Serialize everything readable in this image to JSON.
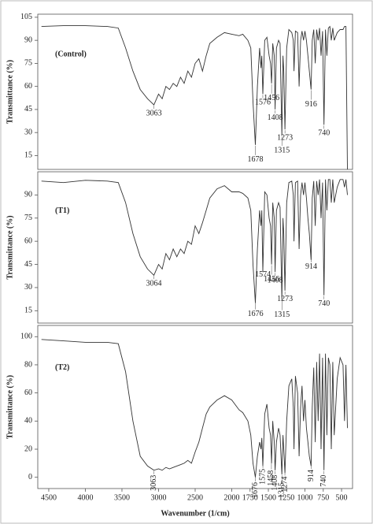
{
  "chart_data": [
    {
      "type": "line",
      "title": "(Control)",
      "ylabel": "Transmittance (%)",
      "xlim": [
        4650,
        350
      ],
      "ylim": [
        6,
        107
      ],
      "yticks": [
        15,
        30,
        45,
        60,
        75,
        90,
        105
      ],
      "x": [
        4600,
        4300,
        4000,
        3700,
        3550,
        3450,
        3350,
        3250,
        3150,
        3063,
        3000,
        2950,
        2900,
        2850,
        2800,
        2750,
        2700,
        2650,
        2600,
        2550,
        2500,
        2450,
        2400,
        2350,
        2300,
        2200,
        2100,
        2000,
        1900,
        1850,
        1780,
        1740,
        1710,
        1678,
        1650,
        1620,
        1600,
        1590,
        1576,
        1550,
        1520,
        1490,
        1470,
        1456,
        1440,
        1420,
        1408,
        1390,
        1360,
        1340,
        1315,
        1300,
        1290,
        1273,
        1250,
        1220,
        1180,
        1160,
        1150,
        1130,
        1100,
        1080,
        1060,
        1040,
        1020,
        1000,
        980,
        960,
        940,
        916,
        900,
        880,
        860,
        840,
        820,
        800,
        780,
        760,
        740,
        720,
        700,
        680,
        660,
        640,
        620,
        600,
        560,
        520,
        480,
        460,
        440,
        420
      ],
      "series": [
        {
          "color": "#333333",
          "values": [
            99,
            99.5,
            99.5,
            99,
            98,
            85,
            70,
            58,
            52,
            48,
            55,
            52,
            60,
            58,
            62,
            60,
            66,
            62,
            70,
            66,
            75,
            78,
            70,
            80,
            88,
            92,
            95,
            94,
            93,
            94,
            90,
            85,
            50,
            22,
            60,
            85,
            72,
            80,
            55,
            90,
            92,
            80,
            75,
            62,
            88,
            80,
            45,
            85,
            90,
            88,
            28,
            80,
            70,
            32,
            85,
            97,
            95,
            90,
            70,
            96,
            95,
            60,
            90,
            96,
            90,
            96,
            90,
            80,
            70,
            58,
            90,
            97,
            75,
            97,
            90,
            98,
            80,
            96,
            35,
            97,
            80,
            98,
            99,
            90,
            98,
            90,
            95,
            97,
            97,
            99,
            99,
            6
          ]
        }
      ],
      "peaks": [
        3063,
        1678,
        1576,
        1456,
        1408,
        1315,
        1273,
        916,
        740
      ]
    },
    {
      "type": "line",
      "title": "(T1)",
      "ylabel": "Transmittance (%)",
      "xlim": [
        4650,
        350
      ],
      "ylim": [
        7,
        105
      ],
      "yticks": [
        15,
        30,
        45,
        60,
        75,
        90
      ],
      "x": [
        4600,
        4300,
        4000,
        3700,
        3550,
        3450,
        3350,
        3250,
        3150,
        3063,
        3000,
        2950,
        2900,
        2850,
        2800,
        2750,
        2700,
        2650,
        2600,
        2550,
        2500,
        2450,
        2400,
        2350,
        2300,
        2200,
        2100,
        2000,
        1900,
        1850,
        1780,
        1740,
        1710,
        1678,
        1650,
        1620,
        1600,
        1590,
        1576,
        1550,
        1520,
        1490,
        1470,
        1456,
        1440,
        1420,
        1408,
        1390,
        1360,
        1340,
        1315,
        1300,
        1290,
        1273,
        1250,
        1220,
        1180,
        1160,
        1150,
        1130,
        1100,
        1080,
        1060,
        1040,
        1020,
        1000,
        980,
        960,
        940,
        916,
        900,
        880,
        860,
        840,
        820,
        800,
        780,
        760,
        740,
        720,
        700,
        680,
        660,
        640,
        620,
        600,
        560,
        520,
        480,
        460,
        440,
        420
      ],
      "series": [
        {
          "color": "#333333",
          "values": [
            99,
            98,
            99.5,
            99,
            98,
            85,
            65,
            50,
            42,
            38,
            45,
            42,
            52,
            48,
            55,
            50,
            55,
            52,
            60,
            58,
            70,
            65,
            72,
            80,
            88,
            94,
            96,
            92,
            92,
            91,
            88,
            80,
            45,
            20,
            55,
            80,
            70,
            80,
            40,
            92,
            90,
            75,
            70,
            45,
            85,
            75,
            40,
            80,
            85,
            82,
            22,
            75,
            65,
            28,
            85,
            98,
            99,
            90,
            60,
            98,
            99,
            55,
            90,
            98,
            90,
            98,
            88,
            75,
            65,
            48,
            88,
            99,
            70,
            99,
            90,
            100,
            75,
            98,
            25,
            100,
            80,
            100,
            100,
            85,
            100,
            85,
            95,
            100,
            100,
            95,
            100,
            90
          ]
        }
      ],
      "peaks": [
        3064,
        1676,
        1574,
        1456,
        1408,
        1315,
        1273,
        914,
        740
      ]
    },
    {
      "type": "line",
      "title": "(T2)",
      "ylabel": "Transmittance (%)",
      "xlabel": "Wavenumber (1/cm)",
      "xlim": [
        4650,
        350
      ],
      "ylim": [
        -8,
        108
      ],
      "yticks": [
        0,
        20,
        40,
        60,
        80,
        100
      ],
      "xticks": [
        4500,
        4000,
        3500,
        3000,
        2500,
        2000,
        1750,
        1500,
        1250,
        1000,
        750,
        500
      ],
      "x": [
        4600,
        4300,
        4000,
        3700,
        3550,
        3450,
        3350,
        3250,
        3150,
        3063,
        3000,
        2950,
        2900,
        2850,
        2800,
        2750,
        2700,
        2650,
        2600,
        2550,
        2500,
        2450,
        2400,
        2350,
        2300,
        2200,
        2100,
        2000,
        1900,
        1850,
        1780,
        1740,
        1710,
        1678,
        1650,
        1620,
        1600,
        1590,
        1576,
        1550,
        1520,
        1490,
        1470,
        1456,
        1440,
        1420,
        1408,
        1390,
        1360,
        1340,
        1315,
        1300,
        1290,
        1273,
        1250,
        1220,
        1180,
        1160,
        1150,
        1130,
        1100,
        1080,
        1060,
        1040,
        1020,
        1000,
        980,
        960,
        940,
        916,
        900,
        880,
        860,
        840,
        820,
        800,
        780,
        760,
        740,
        720,
        700,
        680,
        660,
        640,
        620,
        600,
        560,
        520,
        480,
        460,
        440,
        420
      ],
      "series": [
        {
          "color": "#333333",
          "values": [
            98,
            97,
            96,
            96,
            95,
            75,
            40,
            15,
            8,
            5,
            6,
            5,
            7,
            6,
            7,
            8,
            9,
            10,
            12,
            10,
            18,
            25,
            35,
            45,
            50,
            55,
            58,
            55,
            48,
            46,
            40,
            30,
            10,
            0,
            15,
            25,
            20,
            28,
            8,
            45,
            52,
            35,
            30,
            10,
            40,
            25,
            5,
            25,
            35,
            30,
            2,
            30,
            20,
            3,
            40,
            65,
            70,
            50,
            20,
            72,
            60,
            15,
            50,
            65,
            40,
            55,
            35,
            25,
            15,
            8,
            50,
            78,
            25,
            82,
            40,
            88,
            20,
            85,
            5,
            88,
            30,
            85,
            80,
            20,
            82,
            30,
            70,
            85,
            80,
            40,
            80,
            35
          ]
        }
      ],
      "peaks": [
        3063,
        1676,
        1575,
        1458,
        1408,
        1315,
        1274,
        914,
        740
      ],
      "rotated_peaks": true
    }
  ]
}
